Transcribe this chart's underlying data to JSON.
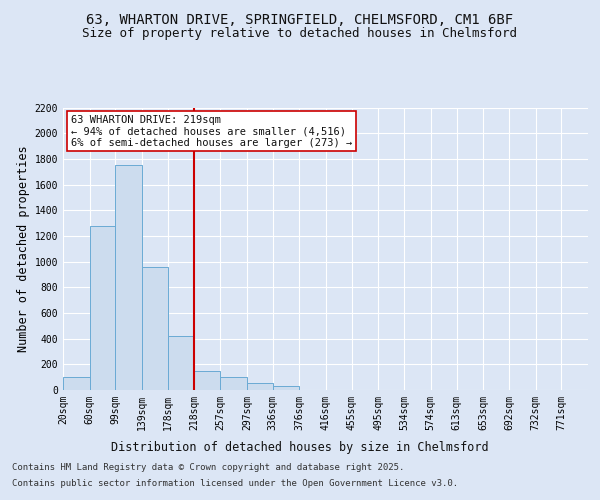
{
  "title_line1": "63, WHARTON DRIVE, SPRINGFIELD, CHELMSFORD, CM1 6BF",
  "title_line2": "Size of property relative to detached houses in Chelmsford",
  "xlabel": "Distribution of detached houses by size in Chelmsford",
  "ylabel": "Number of detached properties",
  "footer_line1": "Contains HM Land Registry data © Crown copyright and database right 2025.",
  "footer_line2": "Contains public sector information licensed under the Open Government Licence v3.0.",
  "annotation_title": "63 WHARTON DRIVE: 219sqm",
  "annotation_line2": "← 94% of detached houses are smaller (4,516)",
  "annotation_line3": "6% of semi-detached houses are larger (273) →",
  "bar_color": "#ccdcee",
  "bar_edge_color": "#6aaad4",
  "vline_color": "#cc0000",
  "vline_x": 218,
  "bg_color": "#dce6f5",
  "plot_bg_color": "#dce6f5",
  "bins": [
    20,
    60,
    99,
    139,
    178,
    218,
    257,
    297,
    336,
    376,
    416,
    455,
    495,
    534,
    574,
    613,
    653,
    692,
    732,
    771,
    811
  ],
  "counts": [
    100,
    1280,
    1750,
    960,
    420,
    150,
    100,
    55,
    30,
    0,
    0,
    0,
    0,
    0,
    0,
    0,
    0,
    0,
    0,
    0
  ],
  "ylim": [
    0,
    2200
  ],
  "yticks": [
    0,
    200,
    400,
    600,
    800,
    1000,
    1200,
    1400,
    1600,
    1800,
    2000,
    2200
  ],
  "grid_color": "#ffffff",
  "title_fontsize": 10,
  "subtitle_fontsize": 9,
  "axis_label_fontsize": 8.5,
  "tick_fontsize": 7,
  "annotation_fontsize": 7.5,
  "footer_fontsize": 6.5
}
